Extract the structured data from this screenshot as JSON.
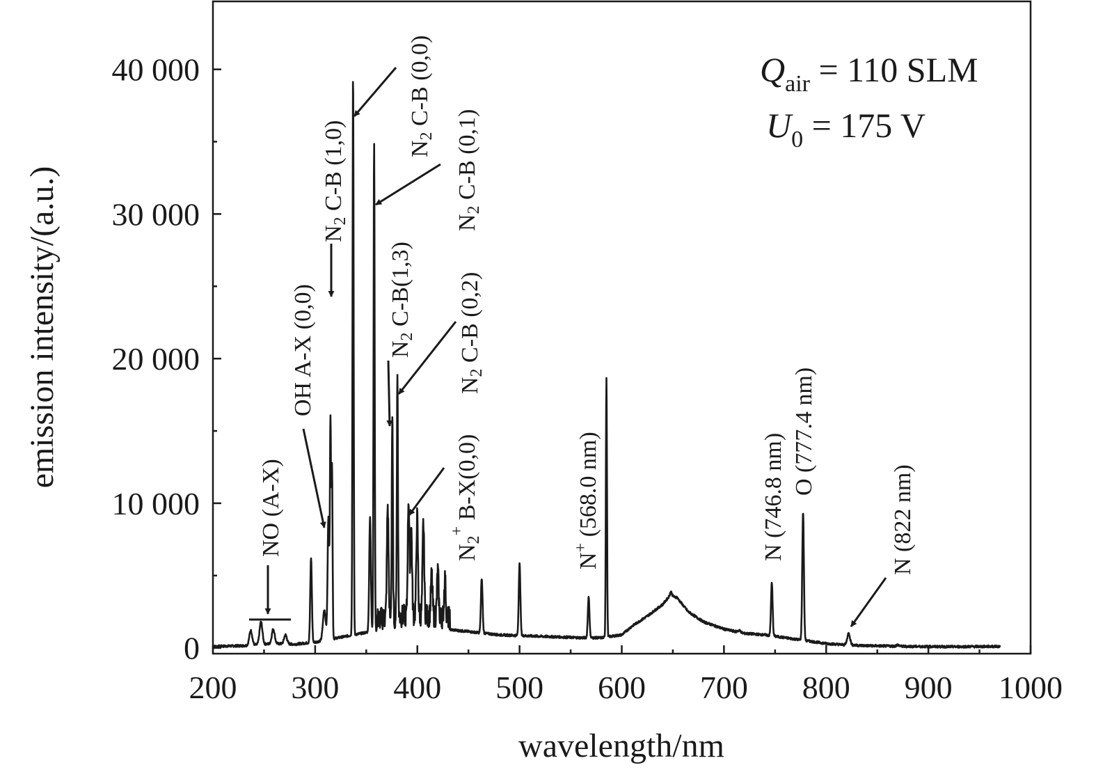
{
  "chart_data": {
    "type": "line",
    "xlabel": "wavelength/nm",
    "ylabel": "emission intensity/(a.u.)",
    "xlim": [
      200,
      1000
    ],
    "ylim": [
      -400,
      44700
    ],
    "x_ticks": [
      200,
      300,
      400,
      500,
      600,
      700,
      800,
      900,
      1000
    ],
    "x_tick_labels": [
      "200",
      "300",
      "400",
      "500",
      "600",
      "700",
      "800",
      "900",
      "1000"
    ],
    "y_ticks": [
      0,
      10000,
      20000,
      30000,
      40000
    ],
    "y_tick_labels": [
      "0",
      "10 000",
      "20 000",
      "30 000",
      "40 000"
    ],
    "grid": false,
    "conditions": [
      {
        "symbol": "Q",
        "subscript": "air",
        "text": " = 110 SLM"
      },
      {
        "symbol": "U",
        "subscript": "0",
        "text": " = 175 V"
      }
    ],
    "spectrum": {
      "baseline": [
        [
          200,
          100
        ],
        [
          230,
          150
        ],
        [
          260,
          300
        ],
        [
          280,
          250
        ],
        [
          300,
          400
        ],
        [
          330,
          800
        ],
        [
          360,
          1200
        ],
        [
          400,
          1500
        ],
        [
          440,
          1200
        ],
        [
          480,
          900
        ],
        [
          520,
          800
        ],
        [
          560,
          700
        ],
        [
          580,
          700
        ],
        [
          600,
          900
        ],
        [
          610,
          1500
        ],
        [
          625,
          2200
        ],
        [
          640,
          3000
        ],
        [
          648,
          3700
        ],
        [
          656,
          3300
        ],
        [
          665,
          2500
        ],
        [
          680,
          1800
        ],
        [
          700,
          1300
        ],
        [
          720,
          1000
        ],
        [
          740,
          900
        ],
        [
          760,
          700
        ],
        [
          780,
          500
        ],
        [
          800,
          300
        ],
        [
          820,
          200
        ],
        [
          840,
          150
        ],
        [
          880,
          100
        ],
        [
          920,
          80
        ],
        [
          970,
          100
        ]
      ],
      "peaks": [
        [
          237,
          1200
        ],
        [
          247,
          1800
        ],
        [
          259,
          1300
        ],
        [
          271,
          900
        ],
        [
          296,
          6200
        ],
        [
          309,
          2600
        ],
        [
          313,
          9000
        ],
        [
          315,
          15400
        ],
        [
          316.5,
          12500
        ],
        [
          337.1,
          39800
        ],
        [
          353.7,
          9000
        ],
        [
          357.7,
          35000
        ],
        [
          371,
          9000
        ],
        [
          375.5,
          15200
        ],
        [
          380.5,
          18000
        ],
        [
          391.4,
          9500
        ],
        [
          394,
          7500
        ],
        [
          399.8,
          8200
        ],
        [
          405.9,
          7800
        ],
        [
          414,
          4200
        ],
        [
          420,
          4500
        ],
        [
          427,
          4000
        ],
        [
          463,
          4800
        ],
        [
          500,
          5800
        ],
        [
          567.6,
          3500
        ],
        [
          585,
          18700
        ],
        [
          648,
          3900
        ],
        [
          654,
          3500
        ],
        [
          715,
          1200
        ],
        [
          746.8,
          4500
        ],
        [
          777.4,
          9400
        ],
        [
          822,
          1000
        ],
        [
          870,
          200
        ]
      ]
    },
    "annotations": [
      {
        "id": "no",
        "label": "NO (A-X)"
      },
      {
        "id": "oh",
        "label": "OH A-X (0,0)"
      },
      {
        "id": "n2-10",
        "label": "N",
        "sub": "2",
        "rest": " C-B (1,0)"
      },
      {
        "id": "n2-00",
        "label": "N",
        "sub": "2",
        "rest": " C-B (0,0)"
      },
      {
        "id": "n2-01",
        "label": "N",
        "sub": "2",
        "rest": " C-B (0,1)"
      },
      {
        "id": "n2-13",
        "label": "N",
        "sub": "2",
        "rest": " C-B(1,3)"
      },
      {
        "id": "n2-02",
        "label": "N",
        "sub": "2",
        "rest": " C-B (0,2)"
      },
      {
        "id": "n2plus",
        "label": "N",
        "sub": "2",
        "sup": "+",
        "rest": " B-X(0,0)"
      },
      {
        "id": "nplus",
        "label": "N",
        "sup": "+",
        "rest": " (568.0 nm)"
      },
      {
        "id": "n746",
        "label": "N (746.8 nm)"
      },
      {
        "id": "o777",
        "label": "O (777.4 nm)"
      },
      {
        "id": "n822",
        "label": "N (822 nm)"
      }
    ]
  }
}
